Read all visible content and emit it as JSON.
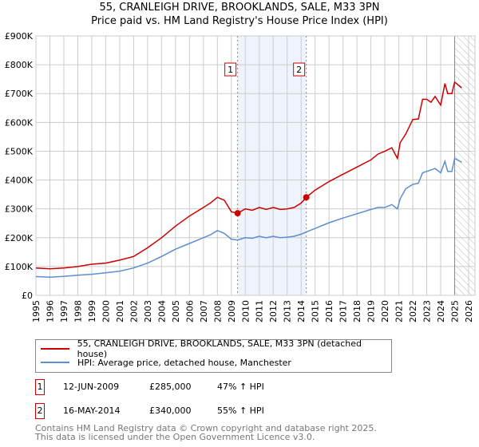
{
  "title_line1": "55, CRANLEIGH DRIVE, BROOKLANDS, SALE, M33 3PN",
  "title_line2": "Price paid vs. HM Land Registry's House Price Index (HPI)",
  "colors": {
    "property": "#cc0000",
    "hpi": "#5b8fd0",
    "shade": "#eef3fc",
    "grid": "#cccccc"
  },
  "chart_data": {
    "type": "line",
    "xlim": [
      1995,
      2026
    ],
    "ylim": [
      0,
      900000
    ],
    "yticks": [
      0,
      100000,
      200000,
      300000,
      400000,
      500000,
      600000,
      700000,
      800000,
      900000
    ],
    "ytick_labels": [
      "£0",
      "£100K",
      "£200K",
      "£300K",
      "£400K",
      "£500K",
      "£600K",
      "£700K",
      "£800K",
      "£900K"
    ],
    "xticks": [
      1995,
      1996,
      1997,
      1998,
      1999,
      2000,
      2001,
      2002,
      2003,
      2004,
      2005,
      2006,
      2007,
      2008,
      2009,
      2010,
      2011,
      2012,
      2013,
      2014,
      2015,
      2016,
      2017,
      2018,
      2019,
      2020,
      2021,
      2022,
      2023,
      2024,
      2025,
      2026
    ],
    "grid": true,
    "shaded_range": [
      2009.45,
      2014.37
    ],
    "forecast_hatch_from": 2025.0,
    "series": [
      {
        "name": "55, CRANLEIGH DRIVE, BROOKLANDS, SALE, M33 3PN (detached house)",
        "color": "#cc0000",
        "x": [
          1995,
          1996,
          1997,
          1998,
          1999,
          2000,
          2001,
          2002,
          2003,
          2004,
          2005,
          2006,
          2007,
          2007.5,
          2008,
          2008.5,
          2009,
          2009.45,
          2010,
          2010.5,
          2011,
          2011.5,
          2012,
          2012.5,
          2013,
          2013.5,
          2014,
          2014.37,
          2015,
          2016,
          2017,
          2018,
          2019,
          2019.5,
          2020,
          2020.5,
          2020.9,
          2021.1,
          2021.5,
          2022,
          2022.4,
          2022.7,
          2023,
          2023.3,
          2023.6,
          2024,
          2024.3,
          2024.5,
          2024.8,
          2025,
          2025.5
        ],
        "y": [
          95000,
          92000,
          95000,
          100000,
          108000,
          112000,
          122000,
          135000,
          165000,
          200000,
          240000,
          275000,
          305000,
          320000,
          340000,
          330000,
          290000,
          285000,
          300000,
          295000,
          305000,
          298000,
          305000,
          298000,
          300000,
          305000,
          320000,
          340000,
          365000,
          395000,
          420000,
          445000,
          470000,
          490000,
          500000,
          512000,
          475000,
          530000,
          560000,
          610000,
          612000,
          680000,
          680000,
          670000,
          690000,
          660000,
          735000,
          700000,
          700000,
          740000,
          720000
        ]
      },
      {
        "name": "HPI: Average price, detached house, Manchester",
        "color": "#5b8fd0",
        "x": [
          1995,
          1996,
          1997,
          1998,
          1999,
          2000,
          2001,
          2002,
          2003,
          2004,
          2005,
          2006,
          2007,
          2007.5,
          2008,
          2008.5,
          2009,
          2009.45,
          2010,
          2010.5,
          2011,
          2011.5,
          2012,
          2012.5,
          2013,
          2013.5,
          2014,
          2014.37,
          2015,
          2016,
          2017,
          2018,
          2019,
          2019.5,
          2020,
          2020.5,
          2020.9,
          2021.1,
          2021.5,
          2022,
          2022.4,
          2022.7,
          2023,
          2023.3,
          2023.6,
          2024,
          2024.3,
          2024.5,
          2024.8,
          2025,
          2025.5
        ],
        "y": [
          65000,
          63000,
          66000,
          70000,
          73000,
          78000,
          84000,
          95000,
          112000,
          135000,
          160000,
          180000,
          200000,
          210000,
          225000,
          215000,
          195000,
          192000,
          200000,
          198000,
          205000,
          200000,
          205000,
          200000,
          202000,
          205000,
          212000,
          220000,
          232000,
          252000,
          268000,
          283000,
          298000,
          305000,
          305000,
          315000,
          300000,
          335000,
          370000,
          385000,
          389000,
          425000,
          430000,
          435000,
          440000,
          425000,
          465000,
          430000,
          430000,
          475000,
          462000
        ]
      }
    ],
    "sales": [
      {
        "label": "1",
        "date": "12-JUN-2009",
        "x": 2009.45,
        "price": 285000,
        "price_text": "£285,000",
        "hpi_text": "47% ↑ HPI"
      },
      {
        "label": "2",
        "date": "16-MAY-2014",
        "x": 2014.37,
        "price": 340000,
        "price_text": "£340,000",
        "hpi_text": "55% ↑ HPI"
      }
    ]
  },
  "footer_line1": "Contains HM Land Registry data © Crown copyright and database right 2025.",
  "footer_line2": "This data is licensed under the Open Government Licence v3.0."
}
